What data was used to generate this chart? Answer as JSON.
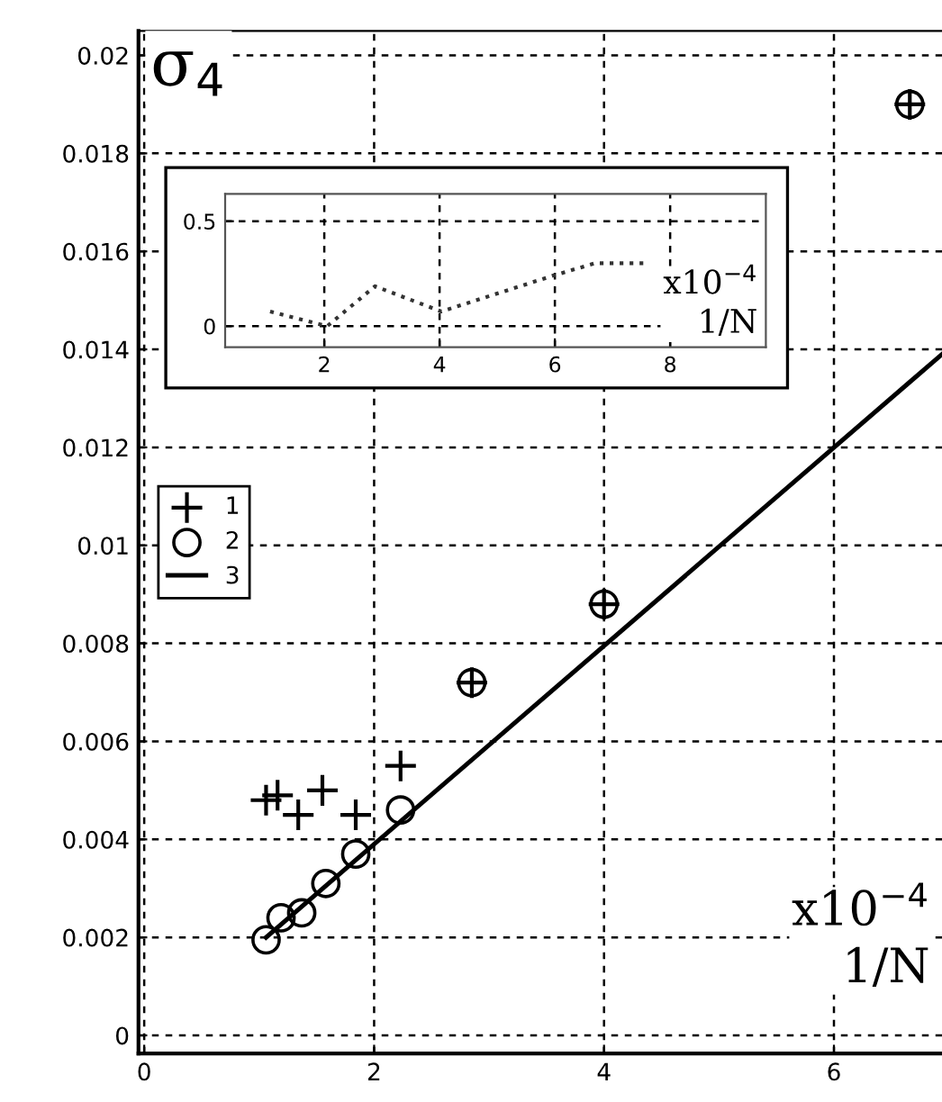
{
  "chart_data": [
    {
      "type": "scatter",
      "ylabel": "σ$_{4}$",
      "xlabel": "x10$^{−4}$\n1/N",
      "xlim": [
        -0.05,
        6.94
      ],
      "ylim": [
        -0.00037,
        0.0205
      ],
      "xticks": [
        0,
        2,
        4,
        6
      ],
      "yticks": [
        0,
        0.002,
        0.004,
        0.006,
        0.008,
        0.01,
        0.012,
        0.014,
        0.016,
        0.018,
        0.02
      ],
      "grid": true,
      "legend": "left",
      "series": [
        {
          "name": "1",
          "type": "scatter",
          "marker": "cross",
          "color": "#000000",
          "x": [
            1.06,
            1.16,
            1.34,
            1.55,
            1.84,
            2.23,
            2.85,
            4.0,
            6.66
          ],
          "values": [
            0.0048,
            0.0049,
            0.0045,
            0.005,
            0.0045,
            0.0055,
            0.0072,
            0.0088,
            0.019
          ]
        },
        {
          "name": "2",
          "type": "scatter",
          "marker": "circle",
          "color": "#000000",
          "x": [
            1.06,
            1.19,
            1.37,
            1.58,
            1.84,
            2.23,
            2.85,
            4.0,
            6.66
          ],
          "values": [
            0.00195,
            0.0024,
            0.0025,
            0.0031,
            0.0037,
            0.0046,
            0.0072,
            0.0088,
            0.019
          ]
        },
        {
          "name": "3",
          "type": "line",
          "line_style": "solid",
          "color": "#000000",
          "x": [
            1.06,
            6.94
          ],
          "values": [
            0.002,
            0.0139
          ]
        }
      ]
    },
    {
      "type": "line",
      "xlabel": "x10$^{−4}$\n1/N",
      "xlim": [
        0.28,
        9.66
      ],
      "ylim": [
        -0.1,
        0.63
      ],
      "xticks": [
        2,
        4,
        6,
        8
      ],
      "yticks": [
        0,
        0.5
      ],
      "grid": true,
      "series": [
        {
          "color": "#333333",
          "line_style": "dotted",
          "x": [
            1.06,
            2.05,
            2.88,
            4.03,
            5.96,
            6.7,
            7.6
          ],
          "values": [
            0.07,
            0.0,
            0.19,
            0.07,
            0.24,
            0.3,
            0.3
          ]
        }
      ]
    }
  ]
}
